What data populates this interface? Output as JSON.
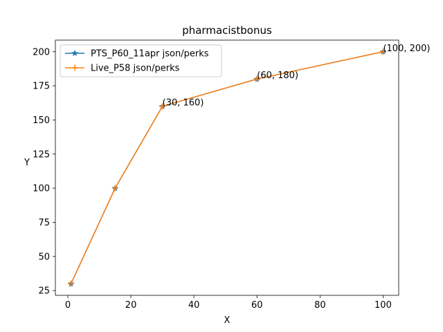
{
  "chart_data": {
    "type": "line",
    "title": "pharmacistbonus",
    "xlabel": "X",
    "ylabel": "Y",
    "xlim": [
      -3.95,
      104.95
    ],
    "ylim": [
      21.5,
      208.5
    ],
    "x_ticks": [
      0,
      20,
      40,
      60,
      80,
      100
    ],
    "y_ticks": [
      25,
      50,
      75,
      100,
      125,
      150,
      175,
      200
    ],
    "grid": false,
    "legend_position": "upper left",
    "series": [
      {
        "name": "PTS_P60_11apr json/perks",
        "color": "#1f77b4",
        "marker": "star",
        "x": [
          1,
          15,
          30,
          60,
          100
        ],
        "y": [
          30,
          100,
          160,
          180,
          200
        ]
      },
      {
        "name": "Live_P58 json/perks",
        "color": "#ff7f0e",
        "marker": "plus",
        "x": [
          1,
          15,
          30,
          60,
          100
        ],
        "y": [
          30,
          100,
          160,
          180,
          200
        ]
      }
    ],
    "annotations": [
      {
        "text": "(30, 160)",
        "x": 30,
        "y": 160
      },
      {
        "text": "(60, 180)",
        "x": 60,
        "y": 180
      },
      {
        "text": "(100, 200)",
        "x": 100,
        "y": 200
      }
    ]
  }
}
